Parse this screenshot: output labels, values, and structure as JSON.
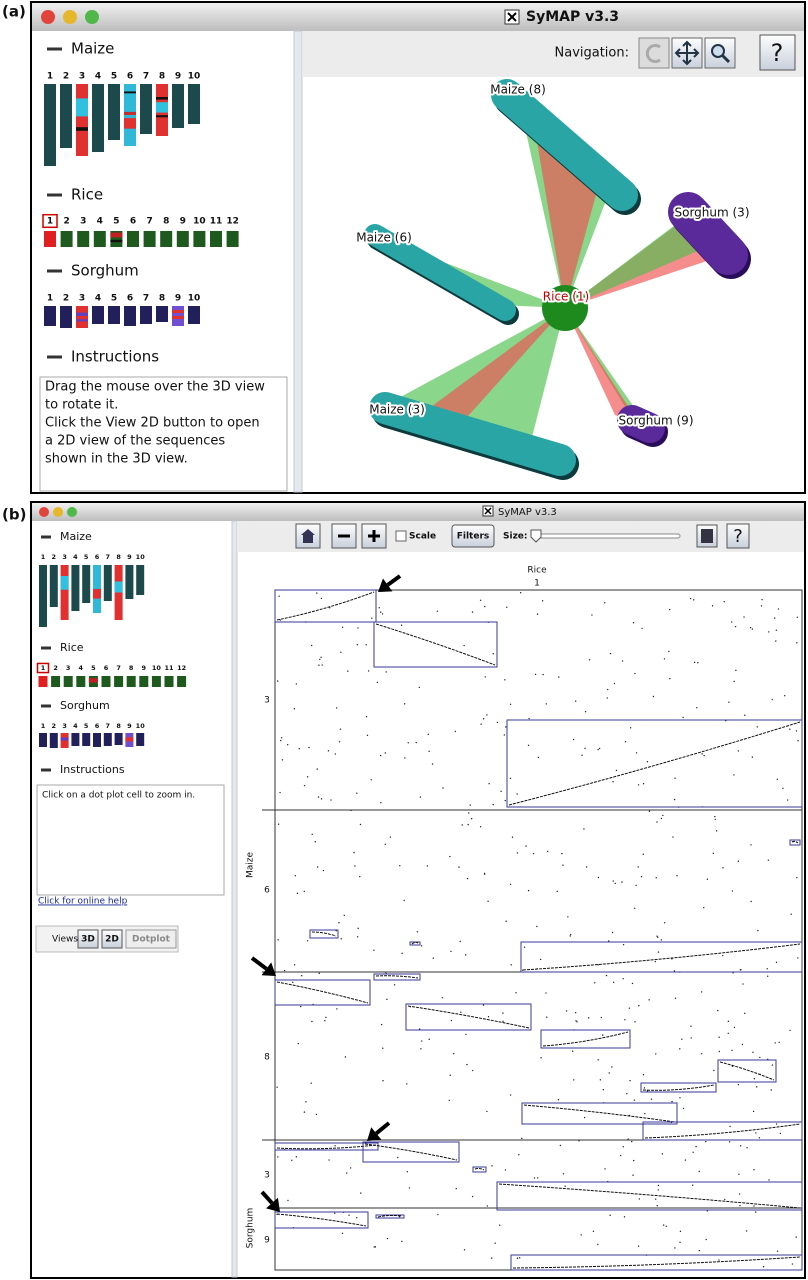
{
  "panel_a": {
    "label": "(a)",
    "window_title": "SyMAP v3.3",
    "sidebar": {
      "maize": {
        "title": "Maize",
        "chromosomes": [
          "1",
          "2",
          "3",
          "4",
          "5",
          "6",
          "7",
          "8",
          "9",
          "10"
        ]
      },
      "rice": {
        "title": "Rice",
        "chromosomes": [
          "1",
          "2",
          "3",
          "4",
          "5",
          "6",
          "7",
          "8",
          "9",
          "10",
          "11",
          "12"
        ]
      },
      "sorghum": {
        "title": "Sorghum",
        "chromosomes": [
          "1",
          "2",
          "3",
          "4",
          "5",
          "6",
          "7",
          "8",
          "9",
          "10"
        ]
      },
      "instructions": {
        "title": "Instructions",
        "lines": [
          "Drag the mouse over the 3D view",
          "to rotate it.",
          "Click the View 2D button to open",
          "a 2D view of the sequences",
          "shown in the 3D view."
        ]
      }
    },
    "navigation_label": "Navigation:",
    "help_button": "?",
    "view_labels": [
      "Maize (8)",
      "Sorghum (3)",
      "Maize (6)",
      "Rice (1)",
      "Maize (3)",
      "Sorghum (9)"
    ]
  },
  "panel_b": {
    "label": "(b)",
    "window_title": "SyMAP v3.3",
    "sidebar": {
      "maize": {
        "title": "Maize",
        "chromosomes": [
          "1",
          "2",
          "3",
          "4",
          "5",
          "6",
          "7",
          "8",
          "9",
          "10"
        ]
      },
      "rice": {
        "title": "Rice",
        "chromosomes": [
          "1",
          "2",
          "3",
          "4",
          "5",
          "6",
          "7",
          "8",
          "9",
          "10",
          "11",
          "12"
        ]
      },
      "sorghum": {
        "title": "Sorghum",
        "chromosomes": [
          "1",
          "2",
          "3",
          "4",
          "5",
          "6",
          "7",
          "8",
          "9",
          "10"
        ]
      },
      "instructions": {
        "title": "Instructions",
        "lines": [
          "Click on a dot plot cell to zoom in."
        ]
      }
    },
    "help_link": "Click for online help",
    "views": {
      "label": "Views:",
      "buttons": [
        "3D",
        "2D",
        "Dotplot"
      ]
    },
    "toolbar": {
      "scale": "Scale",
      "filters": "Filters",
      "size": "Size:",
      "help_button": "?"
    },
    "dotplot": {
      "x_species": "Rice",
      "x_chromosome": "1",
      "y_axis": {
        "maize_label": "Maize",
        "maize_chromosomes": [
          "3",
          "6",
          "8"
        ],
        "sorghum_label": "Sorghum",
        "sorghum_chromosomes": [
          "3",
          "9"
        ]
      }
    }
  }
}
